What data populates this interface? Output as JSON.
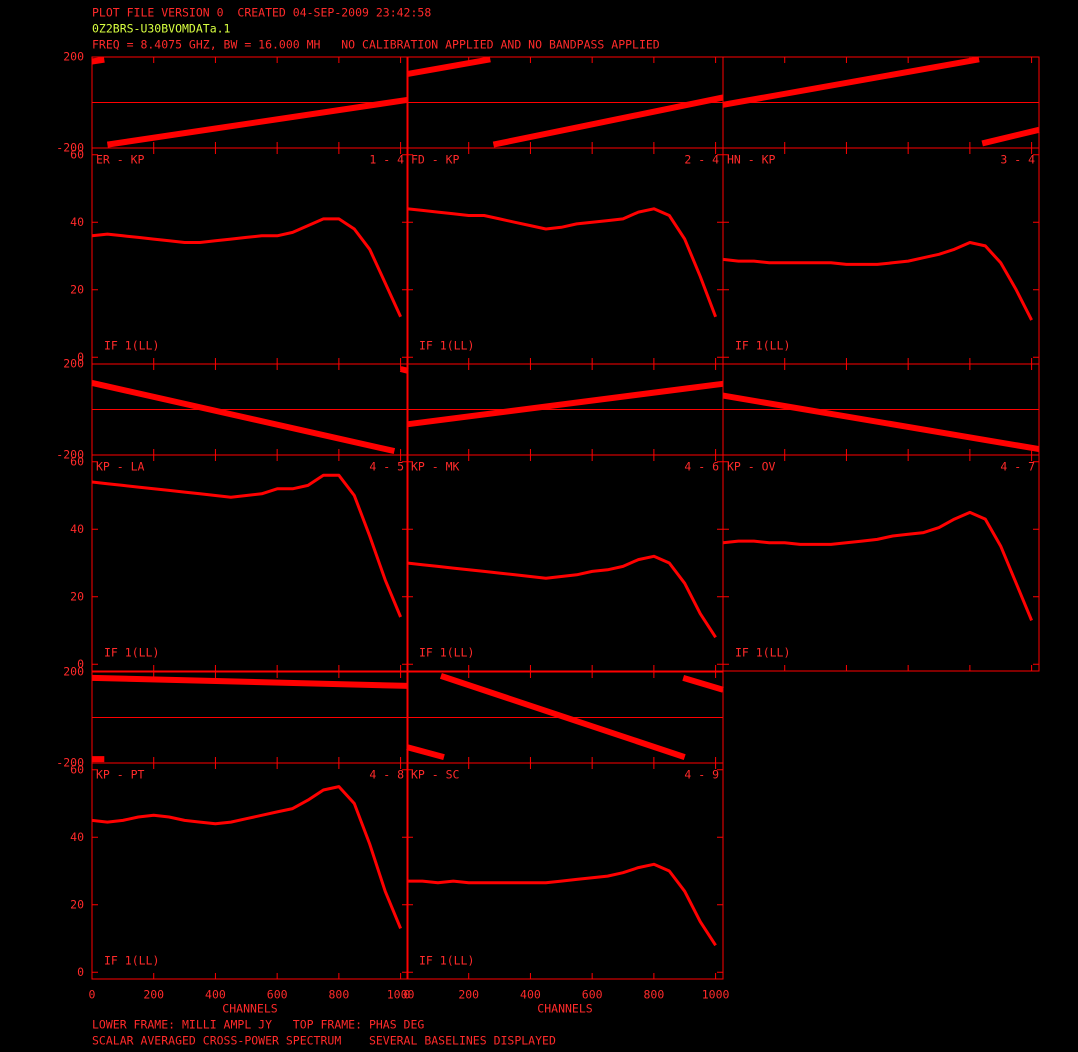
{
  "header": [
    "PLOT FILE VERSION 0  CREATED 04-SEP-2009 23:42:58",
    "0Z2BRS-U30BVOMDATa.1",
    "FREQ = 8.4075 GHZ, BW = 16.000 MH   NO CALIBRATION APPLIED AND NO BANDPASS APPLIED"
  ],
  "footer": [
    "LOWER FRAME: MILLI AMPL JY   TOP FRAME: PHAS DEG",
    "SCALAR AVERAGED CROSS-POWER SPECTRUM    SEVERAL BASELINES DISPLAYED"
  ],
  "xlabel": "CHANNELS",
  "xlim": [
    0,
    1024
  ],
  "xticks": [
    0,
    200,
    400,
    600,
    800,
    1000
  ],
  "amplitude_axis": {
    "ylim": [
      -2,
      62
    ],
    "yticks": [
      0,
      20,
      40,
      60
    ]
  },
  "phase_axis": {
    "ylim": [
      -200,
      200
    ],
    "yticks": [
      -200,
      200
    ]
  },
  "color": "#ff0000",
  "chart_data": [
    {
      "type": "line",
      "title": "ER - KP",
      "label": "1 - 4",
      "annotation": "IF 1(LL)",
      "x": [
        0,
        50,
        100,
        150,
        200,
        250,
        300,
        350,
        400,
        450,
        500,
        550,
        600,
        650,
        700,
        750,
        800,
        850,
        900,
        950,
        1000
      ],
      "values": [
        36,
        36.5,
        36,
        35.5,
        35,
        34.5,
        34,
        34,
        34.5,
        35,
        35.5,
        36,
        36,
        37,
        39,
        41,
        41,
        38,
        32,
        22,
        12
      ],
      "phase": {
        "x": [
          0,
          40,
          45,
          50,
          1024
        ],
        "values": [
          180,
          188,
          null,
          -185,
          12
        ]
      }
    },
    {
      "type": "line",
      "title": "FD - KP",
      "label": "2 - 4",
      "annotation": "IF 1(LL)",
      "x": [
        0,
        50,
        100,
        150,
        200,
        250,
        300,
        350,
        400,
        450,
        500,
        550,
        600,
        650,
        700,
        750,
        800,
        850,
        900,
        950,
        1000
      ],
      "values": [
        44,
        43.5,
        43,
        42.5,
        42,
        42,
        41,
        40,
        39,
        38,
        38.5,
        39.5,
        40,
        40.5,
        41,
        43,
        44,
        42,
        35,
        24,
        12
      ],
      "phase": {
        "x": [
          0,
          270,
          275,
          280,
          1024
        ],
        "values": [
          125,
          190,
          null,
          -185,
          22
        ]
      }
    },
    {
      "type": "line",
      "title": "HN - KP",
      "label": "3 - 4",
      "annotation": "IF 1(LL)",
      "x": [
        0,
        50,
        100,
        150,
        200,
        250,
        300,
        350,
        400,
        450,
        500,
        550,
        600,
        650,
        700,
        750,
        800,
        850,
        900,
        950,
        1000
      ],
      "values": [
        29,
        28.5,
        28.5,
        28,
        28,
        28,
        28,
        28,
        27.5,
        27.5,
        27.5,
        28,
        28.5,
        29.5,
        30.5,
        32,
        34,
        33,
        28,
        20,
        11
      ],
      "phase": {
        "x": [
          0,
          830,
          835,
          840,
          1024
        ],
        "values": [
          -10,
          190,
          null,
          -180,
          -120
        ]
      }
    },
    {
      "type": "line",
      "title": "KP - LA",
      "label": "4 - 5",
      "annotation": "IF 1(LL)",
      "x": [
        0,
        50,
        100,
        150,
        200,
        250,
        300,
        350,
        400,
        450,
        500,
        550,
        600,
        650,
        700,
        750,
        800,
        850,
        900,
        950,
        1000
      ],
      "values": [
        54,
        53.5,
        53,
        52.5,
        52,
        51.5,
        51,
        50.5,
        50,
        49.5,
        50,
        50.5,
        52,
        52,
        53,
        56,
        56,
        50,
        38,
        25,
        14
      ],
      "phase": {
        "x": [
          0,
          980,
          990,
          1000,
          1024
        ],
        "values": [
          117,
          -183,
          null,
          178,
          170
        ]
      }
    },
    {
      "type": "line",
      "title": "KP - MK",
      "label": "4 - 6",
      "annotation": "IF 1(LL)",
      "x": [
        0,
        50,
        100,
        150,
        200,
        250,
        300,
        350,
        400,
        450,
        500,
        550,
        600,
        650,
        700,
        750,
        800,
        850,
        900,
        950,
        1000
      ],
      "values": [
        30,
        29.5,
        29,
        28.5,
        28,
        27.5,
        27,
        26.5,
        26,
        25.5,
        26,
        26.5,
        27.5,
        28,
        29,
        31,
        32,
        30,
        24,
        15,
        8
      ],
      "phase": {
        "x": [
          0,
          1024
        ],
        "values": [
          -65,
          113
        ]
      }
    },
    {
      "type": "line",
      "title": "KP - OV",
      "label": "4 - 7",
      "annotation": "IF 1(LL)",
      "x": [
        0,
        50,
        100,
        150,
        200,
        250,
        300,
        350,
        400,
        450,
        500,
        550,
        600,
        650,
        700,
        750,
        800,
        850,
        900,
        950,
        1000
      ],
      "values": [
        36,
        36.5,
        36.5,
        36,
        36,
        35.5,
        35.5,
        35.5,
        36,
        36.5,
        37,
        38,
        38.5,
        39,
        40.5,
        43,
        45,
        43,
        35,
        24,
        13
      ],
      "phase": {
        "x": [
          0,
          1024
        ],
        "values": [
          61,
          -174
        ]
      }
    },
    {
      "type": "line",
      "title": "KP - PT",
      "label": "4 - 8",
      "annotation": "IF 1(LL)",
      "x": [
        0,
        50,
        100,
        150,
        200,
        250,
        300,
        350,
        400,
        450,
        500,
        550,
        600,
        650,
        700,
        750,
        800,
        850,
        900,
        950,
        1000
      ],
      "values": [
        45,
        44.5,
        45,
        46,
        46.5,
        46,
        45,
        44.5,
        44,
        44.5,
        45.5,
        46.5,
        47.5,
        48.5,
        51,
        54,
        55,
        50,
        38,
        24,
        13
      ],
      "phase": {
        "x": [
          0,
          40,
          45,
          0,
          1024
        ],
        "values": [
          -183,
          -183,
          null,
          174,
          139
        ]
      }
    },
    {
      "type": "line",
      "title": "KP - SC",
      "label": "4 - 9",
      "annotation": "IF 1(LL)",
      "x": [
        0,
        50,
        100,
        150,
        200,
        250,
        300,
        350,
        400,
        450,
        500,
        550,
        600,
        650,
        700,
        750,
        800,
        850,
        900,
        950,
        1000
      ],
      "values": [
        27,
        27,
        26.5,
        27,
        26.5,
        26.5,
        26.5,
        26.5,
        26.5,
        26.5,
        27,
        27.5,
        28,
        28.5,
        29.5,
        31,
        32,
        30,
        24,
        15,
        8
      ],
      "phase": {
        "x": [
          0,
          120,
          125,
          110,
          900,
          905,
          895,
          1024
        ],
        "values": [
          -130,
          -174,
          null,
          183,
          -174,
          null,
          174,
          122
        ]
      }
    }
  ]
}
